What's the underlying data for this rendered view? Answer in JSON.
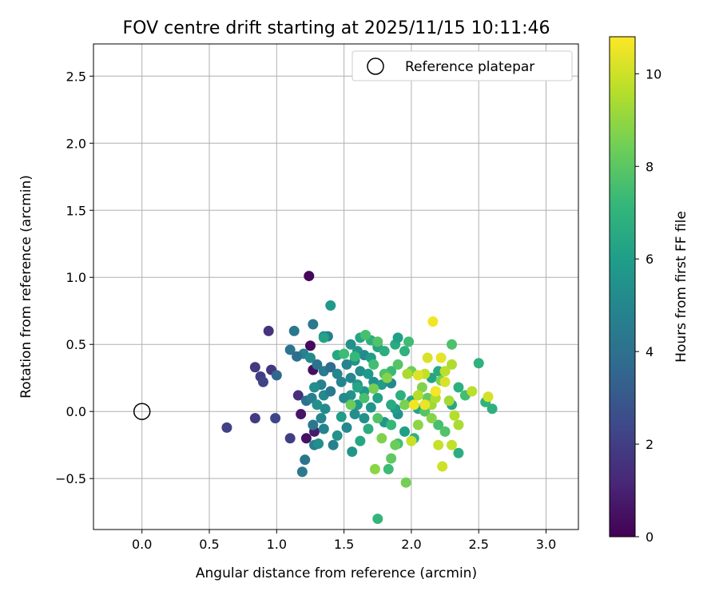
{
  "chart_data": {
    "type": "scatter",
    "title": "FOV centre drift starting at 2025/11/15 10:11:46",
    "xlabel": "Angular distance from reference (arcmin)",
    "ylabel": "Rotation from reference (arcmin)",
    "xlim": [
      -0.36,
      3.24
    ],
    "ylim": [
      -0.88,
      2.74
    ],
    "xticks": [
      "0.0",
      "0.5",
      "1.0",
      "1.5",
      "2.0",
      "2.5",
      "3.0"
    ],
    "xtick_values": [
      0,
      0.5,
      1,
      1.5,
      2,
      2.5,
      3
    ],
    "yticks": [
      "−0.5",
      "0.0",
      "0.5",
      "1.0",
      "1.5",
      "2.0",
      "2.5"
    ],
    "ytick_values": [
      -0.5,
      0,
      0.5,
      1,
      1.5,
      2,
      2.5
    ],
    "grid": true,
    "legend": {
      "position": "top-right",
      "entries": [
        {
          "label": "Reference platepar",
          "marker": "open-circle"
        }
      ]
    },
    "reference_point": {
      "x": 0.0,
      "y": 0.0
    },
    "colorbar": {
      "label": "Hours from first FF file",
      "range": [
        0,
        10.8
      ],
      "ticks": [
        "0",
        "2",
        "4",
        "6",
        "8",
        "10"
      ],
      "tick_values": [
        0,
        2,
        4,
        6,
        8,
        10
      ],
      "colormap": "viridis",
      "colors": [
        "#440154",
        "#482878",
        "#3e4989",
        "#31688e",
        "#26828e",
        "#1f9e89",
        "#35b779",
        "#6ece58",
        "#b5de2b",
        "#fde725"
      ]
    },
    "series": [
      {
        "name": "FOV centre drift",
        "points": [
          {
            "x": 1.24,
            "y": 1.01,
            "h": 0.2
          },
          {
            "x": 1.27,
            "y": 0.31,
            "h": 0.4
          },
          {
            "x": 1.25,
            "y": 0.49,
            "h": 0.3
          },
          {
            "x": 1.22,
            "y": -0.2,
            "h": 0.5
          },
          {
            "x": 1.18,
            "y": -0.02,
            "h": 0.6
          },
          {
            "x": 1.28,
            "y": -0.15,
            "h": 0.8
          },
          {
            "x": 0.94,
            "y": 0.6,
            "h": 1.6
          },
          {
            "x": 0.84,
            "y": 0.33,
            "h": 1.8
          },
          {
            "x": 0.88,
            "y": 0.26,
            "h": 2.0
          },
          {
            "x": 0.96,
            "y": 0.31,
            "h": 1.7
          },
          {
            "x": 0.9,
            "y": 0.22,
            "h": 2.2
          },
          {
            "x": 0.63,
            "y": -0.12,
            "h": 2.1
          },
          {
            "x": 0.84,
            "y": -0.05,
            "h": 1.9
          },
          {
            "x": 0.99,
            "y": -0.05,
            "h": 2.3
          },
          {
            "x": 1.1,
            "y": -0.2,
            "h": 2.0
          },
          {
            "x": 1.16,
            "y": 0.12,
            "h": 1.5
          },
          {
            "x": 1.0,
            "y": 0.27,
            "h": 3.6
          },
          {
            "x": 1.13,
            "y": 0.6,
            "h": 4.3
          },
          {
            "x": 1.27,
            "y": 0.65,
            "h": 4.4
          },
          {
            "x": 1.35,
            "y": 0.56,
            "h": 4.9
          },
          {
            "x": 1.38,
            "y": 0.56,
            "h": 4.6
          },
          {
            "x": 1.1,
            "y": 0.46,
            "h": 4.2
          },
          {
            "x": 1.2,
            "y": 0.43,
            "h": 4.8
          },
          {
            "x": 1.15,
            "y": 0.41,
            "h": 3.9
          },
          {
            "x": 1.25,
            "y": 0.4,
            "h": 5.2
          },
          {
            "x": 1.3,
            "y": 0.35,
            "h": 4.1
          },
          {
            "x": 1.35,
            "y": 0.3,
            "h": 4.5
          },
          {
            "x": 1.4,
            "y": 0.33,
            "h": 3.8
          },
          {
            "x": 1.45,
            "y": 0.28,
            "h": 5.0
          },
          {
            "x": 1.33,
            "y": 0.2,
            "h": 4.7
          },
          {
            "x": 1.28,
            "y": 0.18,
            "h": 5.3
          },
          {
            "x": 1.22,
            "y": 0.08,
            "h": 4.0
          },
          {
            "x": 1.26,
            "y": 0.1,
            "h": 4.6
          },
          {
            "x": 1.35,
            "y": 0.12,
            "h": 5.1
          },
          {
            "x": 1.4,
            "y": 0.15,
            "h": 4.4
          },
          {
            "x": 1.48,
            "y": 0.22,
            "h": 4.9
          },
          {
            "x": 1.3,
            "y": 0.05,
            "h": 5.4
          },
          {
            "x": 1.36,
            "y": 0.02,
            "h": 5.2
          },
          {
            "x": 1.33,
            "y": -0.05,
            "h": 5.0
          },
          {
            "x": 1.27,
            "y": -0.1,
            "h": 4.3
          },
          {
            "x": 1.35,
            "y": -0.13,
            "h": 4.8
          },
          {
            "x": 1.45,
            "y": -0.18,
            "h": 5.5
          },
          {
            "x": 1.28,
            "y": -0.25,
            "h": 4.6
          },
          {
            "x": 1.31,
            "y": -0.24,
            "h": 5.3
          },
          {
            "x": 1.42,
            "y": -0.25,
            "h": 4.7
          },
          {
            "x": 1.21,
            "y": -0.36,
            "h": 4.2
          },
          {
            "x": 1.19,
            "y": -0.45,
            "h": 4.4
          },
          {
            "x": 1.56,
            "y": -0.3,
            "h": 5.6
          },
          {
            "x": 1.4,
            "y": 0.79,
            "h": 5.8
          },
          {
            "x": 1.55,
            "y": 0.5,
            "h": 5.4
          },
          {
            "x": 1.6,
            "y": 0.45,
            "h": 5.7
          },
          {
            "x": 1.65,
            "y": 0.42,
            "h": 5.2
          },
          {
            "x": 1.7,
            "y": 0.4,
            "h": 5.9
          },
          {
            "x": 1.58,
            "y": 0.38,
            "h": 5.5
          },
          {
            "x": 1.52,
            "y": 0.35,
            "h": 4.9
          },
          {
            "x": 1.62,
            "y": 0.3,
            "h": 5.3
          },
          {
            "x": 1.68,
            "y": 0.28,
            "h": 5.8
          },
          {
            "x": 1.55,
            "y": 0.25,
            "h": 5.0
          },
          {
            "x": 1.6,
            "y": 0.2,
            "h": 5.6
          },
          {
            "x": 1.72,
            "y": 0.22,
            "h": 5.4
          },
          {
            "x": 1.78,
            "y": 0.2,
            "h": 5.9
          },
          {
            "x": 1.85,
            "y": 0.21,
            "h": 5.1
          },
          {
            "x": 1.65,
            "y": 0.15,
            "h": 5.7
          },
          {
            "x": 1.55,
            "y": 0.12,
            "h": 5.5
          },
          {
            "x": 1.5,
            "y": 0.1,
            "h": 5.2
          },
          {
            "x": 1.6,
            "y": 0.05,
            "h": 5.8
          },
          {
            "x": 1.7,
            "y": 0.03,
            "h": 5.6
          },
          {
            "x": 1.58,
            "y": -0.02,
            "h": 5.3
          },
          {
            "x": 1.48,
            "y": -0.04,
            "h": 5.9
          },
          {
            "x": 1.65,
            "y": -0.05,
            "h": 5.4
          },
          {
            "x": 1.8,
            "y": -0.08,
            "h": 5.7
          },
          {
            "x": 1.9,
            "y": -0.02,
            "h": 5.5
          },
          {
            "x": 1.88,
            "y": 0.02,
            "h": 5.9
          },
          {
            "x": 1.52,
            "y": -0.12,
            "h": 5.1
          },
          {
            "x": 1.35,
            "y": 0.55,
            "h": 6.2
          },
          {
            "x": 1.45,
            "y": 0.42,
            "h": 6.5
          },
          {
            "x": 1.62,
            "y": 0.55,
            "h": 6.4
          },
          {
            "x": 1.7,
            "y": 0.53,
            "h": 6.8
          },
          {
            "x": 1.75,
            "y": 0.48,
            "h": 6.3
          },
          {
            "x": 1.8,
            "y": 0.45,
            "h": 6.7
          },
          {
            "x": 1.88,
            "y": 0.5,
            "h": 6.6
          },
          {
            "x": 1.9,
            "y": 0.55,
            "h": 6.1
          },
          {
            "x": 1.95,
            "y": 0.45,
            "h": 6.9
          },
          {
            "x": 1.6,
            "y": 0.18,
            "h": 6.4
          },
          {
            "x": 1.75,
            "y": 0.1,
            "h": 6.2
          },
          {
            "x": 1.85,
            "y": 0.05,
            "h": 6.6
          },
          {
            "x": 1.92,
            "y": 0.12,
            "h": 6.8
          },
          {
            "x": 2.0,
            "y": 0.08,
            "h": 6.5
          },
          {
            "x": 2.05,
            "y": 0.02,
            "h": 6.3
          },
          {
            "x": 1.68,
            "y": -0.13,
            "h": 6.7
          },
          {
            "x": 1.62,
            "y": -0.22,
            "h": 6.4
          },
          {
            "x": 1.95,
            "y": -0.15,
            "h": 6.1
          },
          {
            "x": 2.02,
            "y": -0.2,
            "h": 6.9
          },
          {
            "x": 2.15,
            "y": 0.25,
            "h": 6.3
          },
          {
            "x": 2.2,
            "y": 0.3,
            "h": 6.6
          },
          {
            "x": 2.35,
            "y": 0.18,
            "h": 6.8
          },
          {
            "x": 2.3,
            "y": 0.05,
            "h": 6.4
          },
          {
            "x": 2.35,
            "y": -0.31,
            "h": 6.7
          },
          {
            "x": 2.5,
            "y": 0.36,
            "h": 6.9
          },
          {
            "x": 2.55,
            "y": 0.07,
            "h": 7.0
          },
          {
            "x": 2.6,
            "y": 0.02,
            "h": 6.8
          },
          {
            "x": 1.5,
            "y": 0.43,
            "h": 7.4
          },
          {
            "x": 1.58,
            "y": 0.41,
            "h": 7.2
          },
          {
            "x": 1.66,
            "y": 0.57,
            "h": 7.6
          },
          {
            "x": 1.75,
            "y": 0.52,
            "h": 7.8
          },
          {
            "x": 1.85,
            "y": 0.3,
            "h": 7.3
          },
          {
            "x": 1.72,
            "y": 0.35,
            "h": 7.5
          },
          {
            "x": 1.8,
            "y": 0.28,
            "h": 7.7
          },
          {
            "x": 1.9,
            "y": 0.35,
            "h": 7.9
          },
          {
            "x": 1.98,
            "y": 0.52,
            "h": 7.4
          },
          {
            "x": 1.65,
            "y": 0.1,
            "h": 7.6
          },
          {
            "x": 1.75,
            "y": -0.05,
            "h": 7.8
          },
          {
            "x": 1.85,
            "y": -0.1,
            "h": 7.2
          },
          {
            "x": 1.9,
            "y": -0.24,
            "h": 7.5
          },
          {
            "x": 1.83,
            "y": -0.43,
            "h": 7.4
          },
          {
            "x": 1.75,
            "y": -0.8,
            "h": 7.1
          },
          {
            "x": 2.1,
            "y": 0.0,
            "h": 7.9
          },
          {
            "x": 2.2,
            "y": -0.1,
            "h": 7.6
          },
          {
            "x": 2.25,
            "y": -0.15,
            "h": 7.8
          },
          {
            "x": 2.18,
            "y": 0.15,
            "h": 7.3
          },
          {
            "x": 2.3,
            "y": 0.5,
            "h": 7.7
          },
          {
            "x": 2.4,
            "y": 0.12,
            "h": 7.5
          },
          {
            "x": 1.55,
            "y": 0.05,
            "h": 8.3
          },
          {
            "x": 1.72,
            "y": 0.17,
            "h": 8.5
          },
          {
            "x": 1.82,
            "y": 0.25,
            "h": 8.8
          },
          {
            "x": 1.95,
            "y": 0.05,
            "h": 8.6
          },
          {
            "x": 2.0,
            "y": 0.3,
            "h": 8.4
          },
          {
            "x": 2.05,
            "y": -0.1,
            "h": 8.9
          },
          {
            "x": 2.12,
            "y": 0.1,
            "h": 8.2
          },
          {
            "x": 1.78,
            "y": -0.2,
            "h": 8.7
          },
          {
            "x": 1.85,
            "y": -0.35,
            "h": 8.1
          },
          {
            "x": 2.15,
            "y": -0.05,
            "h": 8.8
          },
          {
            "x": 1.96,
            "y": -0.53,
            "h": 8.5
          },
          {
            "x": 2.22,
            "y": 0.23,
            "h": 8.6
          },
          {
            "x": 1.73,
            "y": -0.43,
            "h": 8.9
          },
          {
            "x": 1.88,
            "y": -0.25,
            "h": 8.3
          },
          {
            "x": 2.08,
            "y": 0.18,
            "h": 8.7
          },
          {
            "x": 1.97,
            "y": 0.28,
            "h": 9.4
          },
          {
            "x": 2.05,
            "y": 0.12,
            "h": 9.6
          },
          {
            "x": 2.1,
            "y": 0.28,
            "h": 9.8
          },
          {
            "x": 2.15,
            "y": 0.05,
            "h": 9.2
          },
          {
            "x": 2.18,
            "y": 0.1,
            "h": 9.5
          },
          {
            "x": 2.25,
            "y": 0.3,
            "h": 9.7
          },
          {
            "x": 2.28,
            "y": 0.08,
            "h": 9.3
          },
          {
            "x": 2.2,
            "y": -0.25,
            "h": 9.9
          },
          {
            "x": 2.32,
            "y": -0.03,
            "h": 9.6
          },
          {
            "x": 2.35,
            "y": -0.1,
            "h": 9.4
          },
          {
            "x": 2.3,
            "y": -0.25,
            "h": 9.8
          },
          {
            "x": 2.23,
            "y": -0.41,
            "h": 10.0
          },
          {
            "x": 2.45,
            "y": 0.15,
            "h": 9.7
          },
          {
            "x": 2.57,
            "y": 0.11,
            "h": 10.1
          },
          {
            "x": 2.0,
            "y": -0.22,
            "h": 9.9
          },
          {
            "x": 2.3,
            "y": 0.35,
            "h": 9.5
          },
          {
            "x": 2.12,
            "y": 0.4,
            "h": 10.2
          },
          {
            "x": 2.16,
            "y": 0.67,
            "h": 10.6
          },
          {
            "x": 2.22,
            "y": 0.4,
            "h": 10.4
          },
          {
            "x": 2.1,
            "y": 0.05,
            "h": 10.5
          },
          {
            "x": 2.05,
            "y": 0.27,
            "h": 10.3
          },
          {
            "x": 2.18,
            "y": 0.15,
            "h": 10.7
          },
          {
            "x": 2.02,
            "y": 0.05,
            "h": 10.6
          },
          {
            "x": 2.25,
            "y": 0.22,
            "h": 10.2
          }
        ]
      }
    ]
  }
}
